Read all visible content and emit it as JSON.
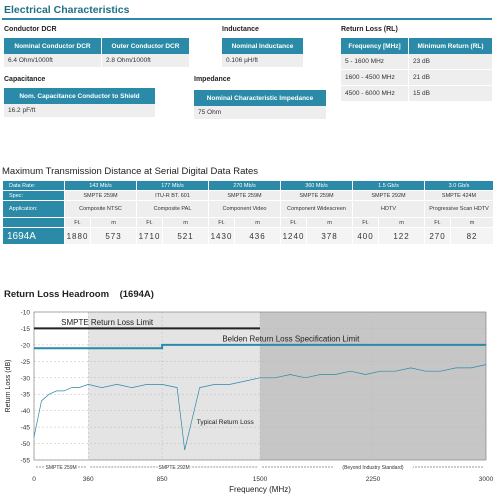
{
  "electrical": {
    "title": "Electrical Characteristics",
    "conductor_dcr": {
      "title": "Conductor DCR",
      "headers": [
        "Nominal Conductor DCR",
        "Outer Conductor DCR"
      ],
      "values": [
        "6.4 Ohm/1000ft",
        "2.8 Ohm/1000ft"
      ]
    },
    "inductance": {
      "title": "Inductance",
      "header": "Nominal Inductance",
      "value": "0.106 µH/ft"
    },
    "return_loss": {
      "title": "Return Loss (RL)",
      "headers": [
        "Frequency [MHz]",
        "Minimum Return (RL)"
      ],
      "rows": [
        [
          "5 - 1600 MHz",
          "23 dB"
        ],
        [
          "1600 - 4500 MHz",
          "21 dB"
        ],
        [
          "4500 - 6000 MHz",
          "15 dB"
        ]
      ]
    },
    "capacitance": {
      "title": "Capacitance",
      "header": "Nom. Capacitance Conductor to Shield",
      "value": "16.2 pF/ft"
    },
    "impedance": {
      "title": "Impedance",
      "header": "Nominal Characteristic Impedance",
      "value": "75 Ohm"
    }
  },
  "transmission": {
    "title": "Maximum Transmission Distance at Serial Digital Data Rates",
    "data_rate_label": "Data Rate:",
    "spec_label": "Spec:",
    "application_label": "Application:",
    "columns": [
      {
        "rate": "143 Mb/s",
        "spec": "SMPTE 259M",
        "application": "Composite NTSC",
        "ft": "1880",
        "m": "573"
      },
      {
        "rate": "177 Mb/s",
        "spec": "ITU-R BT. 601",
        "application": "Composite PAL",
        "ft": "1710",
        "m": "521"
      },
      {
        "rate": "270 Mb/s",
        "spec": "SMPTE 259M",
        "application": "Component Video",
        "ft": "1430",
        "m": "436"
      },
      {
        "rate": "360 Mb/s",
        "spec": "SMPTE 259M",
        "application": "Component Widescreen",
        "ft": "1240",
        "m": "378"
      },
      {
        "rate": "1.5 Gb/s",
        "spec": "SMPTE 292M",
        "application": "HDTV",
        "ft": "400",
        "m": "122"
      },
      {
        "rate": "3.0 Gb/s",
        "spec": "SMPTE 424M",
        "application": "Progressive Scan HDTV",
        "ft": "270",
        "m": "82"
      }
    ],
    "ft_label": "Ft.",
    "m_label": "m",
    "product": "1694A"
  },
  "chart_data": {
    "type": "line",
    "title": "Return Loss Headroom",
    "subtitle": "(1694A)",
    "xlabel": "Frequency (MHz)",
    "ylabel": "Return Loss (dB)",
    "xlim": [
      0,
      3000
    ],
    "ylim": [
      -55,
      -10
    ],
    "x_ticks": [
      0,
      360,
      850,
      1500,
      2250,
      3000
    ],
    "y_ticks": [
      -10,
      -15,
      -20,
      -25,
      -30,
      -35,
      -40,
      -45,
      -50,
      -55
    ],
    "grid": true,
    "regions": [
      {
        "label": "SMPTE 259M",
        "x": [
          0,
          360
        ],
        "shade": "#ffffff"
      },
      {
        "label": "SMPTE 292M",
        "x": [
          360,
          1500
        ],
        "shade": "#e4e4e4"
      },
      {
        "label": "(Beyond Industry Standard)",
        "x": [
          1500,
          3000
        ],
        "shade": "#c6c6c6"
      }
    ],
    "series": [
      {
        "name": "SMPTE Return Loss   Limit",
        "color": "#222222",
        "x": [
          0,
          1500
        ],
        "y": [
          -15,
          -15
        ]
      },
      {
        "name": "Belden Return Loss Specification   Limit",
        "color": "#2a8aa8",
        "x": [
          0,
          850,
          850,
          3000
        ],
        "y": [
          -21,
          -21,
          -20,
          -20
        ]
      },
      {
        "name": "Typical Return Loss",
        "color": "#2a8aa8",
        "x": [
          0,
          50,
          100,
          150,
          200,
          250,
          300,
          360,
          450,
          550,
          650,
          750,
          850,
          950,
          1000,
          1100,
          1200,
          1300,
          1400,
          1500,
          1600,
          1700,
          1800,
          1900,
          2000,
          2100,
          2200,
          2300,
          2400,
          2500,
          2600,
          2700,
          2800,
          2900,
          3000
        ],
        "y": [
          -48,
          -37,
          -35,
          -34,
          -34,
          -33,
          -33,
          -32,
          -33,
          -32,
          -33,
          -32,
          -32,
          -33,
          -52,
          -33,
          -32,
          -32,
          -31,
          -30,
          -30,
          -29,
          -30,
          -29,
          -29,
          -28,
          -29,
          -28,
          -28,
          -27,
          -28,
          -28,
          -27,
          -27,
          -26
        ]
      }
    ],
    "annotations": [
      "Typical Return Loss"
    ]
  },
  "colors": {
    "accent": "#2a8aa8",
    "grid": "#bbbbbb"
  }
}
